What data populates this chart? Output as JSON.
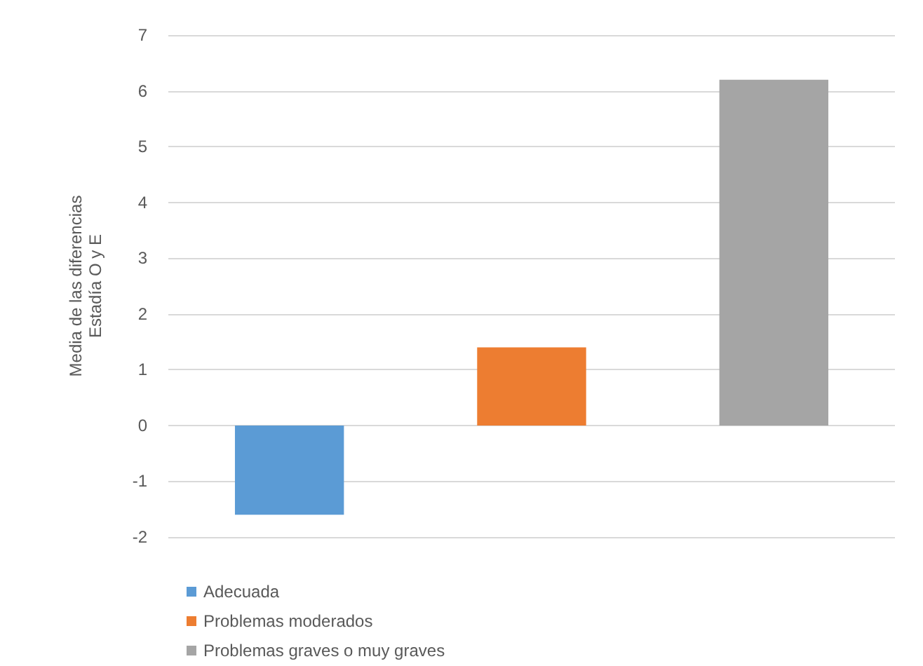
{
  "chart_data": {
    "type": "bar",
    "ylabel": "Media de las diferencias\nEstadía O y E",
    "categories": [
      null,
      null,
      null
    ],
    "series": [
      {
        "name": "Adecuada",
        "color": "#5b9bd5",
        "values": [
          -1.6,
          null,
          null
        ]
      },
      {
        "name": "Problemas moderados",
        "color": "#ed7d31",
        "values": [
          null,
          1.4,
          null
        ]
      },
      {
        "name": "Problemas graves o muy graves",
        "color": "#a5a5a5",
        "values": [
          null,
          null,
          6.2
        ]
      }
    ],
    "ylim": [
      -2,
      7
    ],
    "yticks": [
      -2,
      -1,
      0,
      1,
      2,
      3,
      4,
      5,
      6,
      7
    ],
    "grid": "y",
    "legend": "bottom left",
    "tick_labels": "y"
  }
}
